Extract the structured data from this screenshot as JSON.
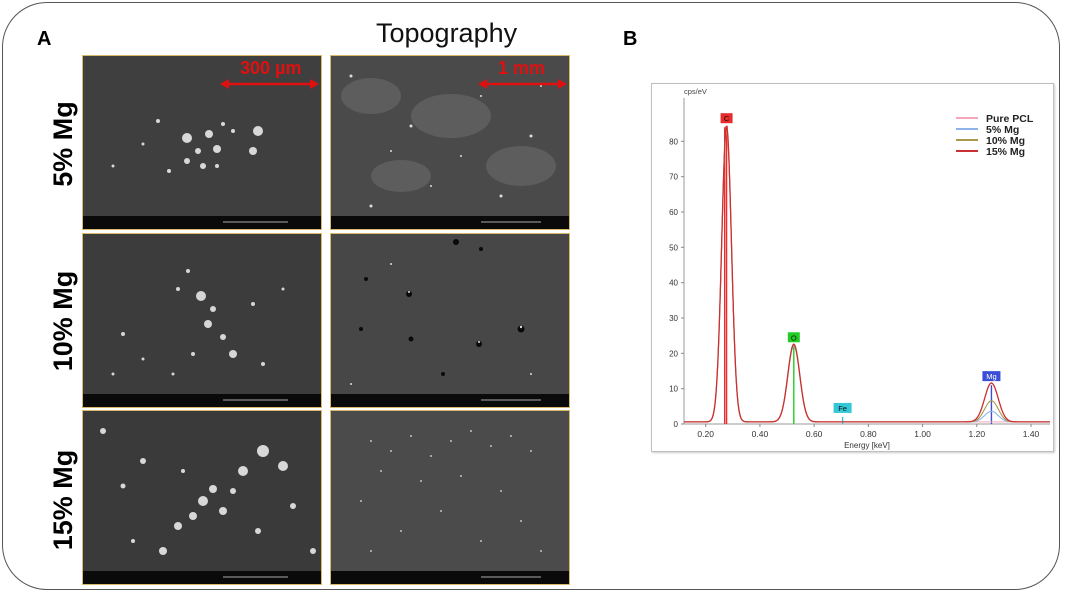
{
  "panel_a": {
    "letter": "A",
    "heading": "Topography",
    "rows": [
      {
        "label": "5% Mg",
        "scale_left": "300 µm",
        "scale_right": "1 mm"
      },
      {
        "label": "10% Mg"
      },
      {
        "label": "15% Mg"
      }
    ]
  },
  "panel_b": {
    "letter": "B"
  },
  "chart_data": {
    "type": "line",
    "title": "",
    "ylabel": "cps/eV",
    "xlabel": "Energy [keV]",
    "xlim": [
      0.12,
      1.47
    ],
    "ylim": [
      0,
      90
    ],
    "xticks": [
      "0.20",
      "0.40",
      "0.60",
      "0.80",
      "1.00",
      "1.20",
      "1.40"
    ],
    "yticks": [
      "0",
      "10",
      "20",
      "30",
      "40",
      "50",
      "60",
      "70",
      "80"
    ],
    "grid": false,
    "legend_position": "top-right",
    "peak_labels": [
      {
        "element": "C",
        "x": 0.277,
        "y": 84,
        "color": "#e82b2b"
      },
      {
        "element": "O",
        "x": 0.525,
        "y": 22,
        "color": "#22cc22"
      },
      {
        "element": "Fe",
        "x": 0.705,
        "y": 2,
        "color": "#33c8d8"
      },
      {
        "element": "Mg",
        "x": 1.254,
        "y": 11,
        "color": "#3b4fd6"
      }
    ],
    "series": [
      {
        "name": "Pure PCL",
        "color": "#f4a7b9",
        "peaks": [
          [
            0.277,
            84
          ],
          [
            0.525,
            22
          ],
          [
            1.254,
            0
          ]
        ]
      },
      {
        "name": "5% Mg",
        "color": "#8fb4ea",
        "peaks": [
          [
            0.277,
            83
          ],
          [
            0.525,
            21.5
          ],
          [
            1.254,
            3
          ]
        ]
      },
      {
        "name": "10% Mg",
        "color": "#a89a48",
        "peaks": [
          [
            0.277,
            83
          ],
          [
            0.525,
            22
          ],
          [
            1.254,
            6
          ]
        ]
      },
      {
        "name": "15% Mg",
        "color": "#cc3030",
        "peaks": [
          [
            0.277,
            84
          ],
          [
            0.525,
            22
          ],
          [
            1.254,
            11
          ]
        ]
      }
    ]
  }
}
